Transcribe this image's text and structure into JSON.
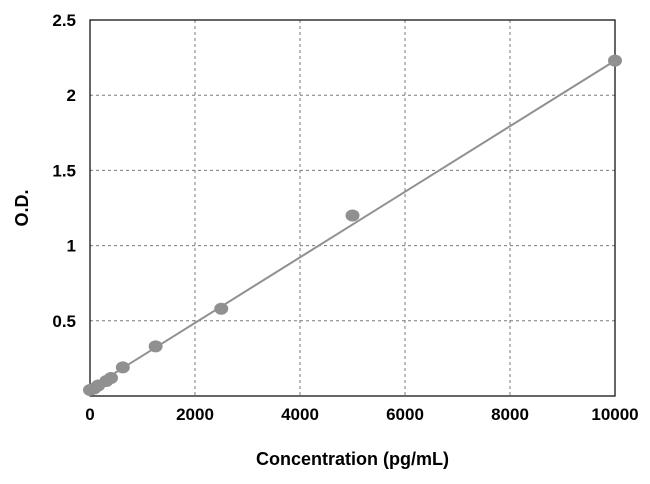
{
  "chart_data": {
    "type": "scatter",
    "title": "",
    "xlabel": "Concentration (pg/mL)",
    "ylabel": "O.D.",
    "xlim": [
      0,
      10000
    ],
    "ylim": [
      0,
      2.5
    ],
    "xticks": [
      0,
      2000,
      4000,
      6000,
      8000,
      10000
    ],
    "yticks": [
      0.5,
      1,
      1.5,
      2,
      2.5
    ],
    "xtick_labels": [
      "0",
      "2000",
      "4000",
      "6000",
      "8000",
      "10000"
    ],
    "ytick_labels": [
      "0.5",
      "1",
      "1.5",
      "2",
      "2.5"
    ],
    "grid": true,
    "legend": "none",
    "series": [
      {
        "x": [
          0,
          78,
          156,
          312,
          400,
          625,
          1250,
          2500,
          5000,
          10000
        ],
        "y": [
          0.04,
          0.05,
          0.07,
          0.1,
          0.12,
          0.19,
          0.33,
          0.58,
          1.2,
          2.23
        ],
        "color": "#909090"
      }
    ],
    "fit_line": {
      "x": [
        0,
        10000
      ],
      "y": [
        0.05,
        2.23
      ],
      "color": "#909090"
    }
  }
}
